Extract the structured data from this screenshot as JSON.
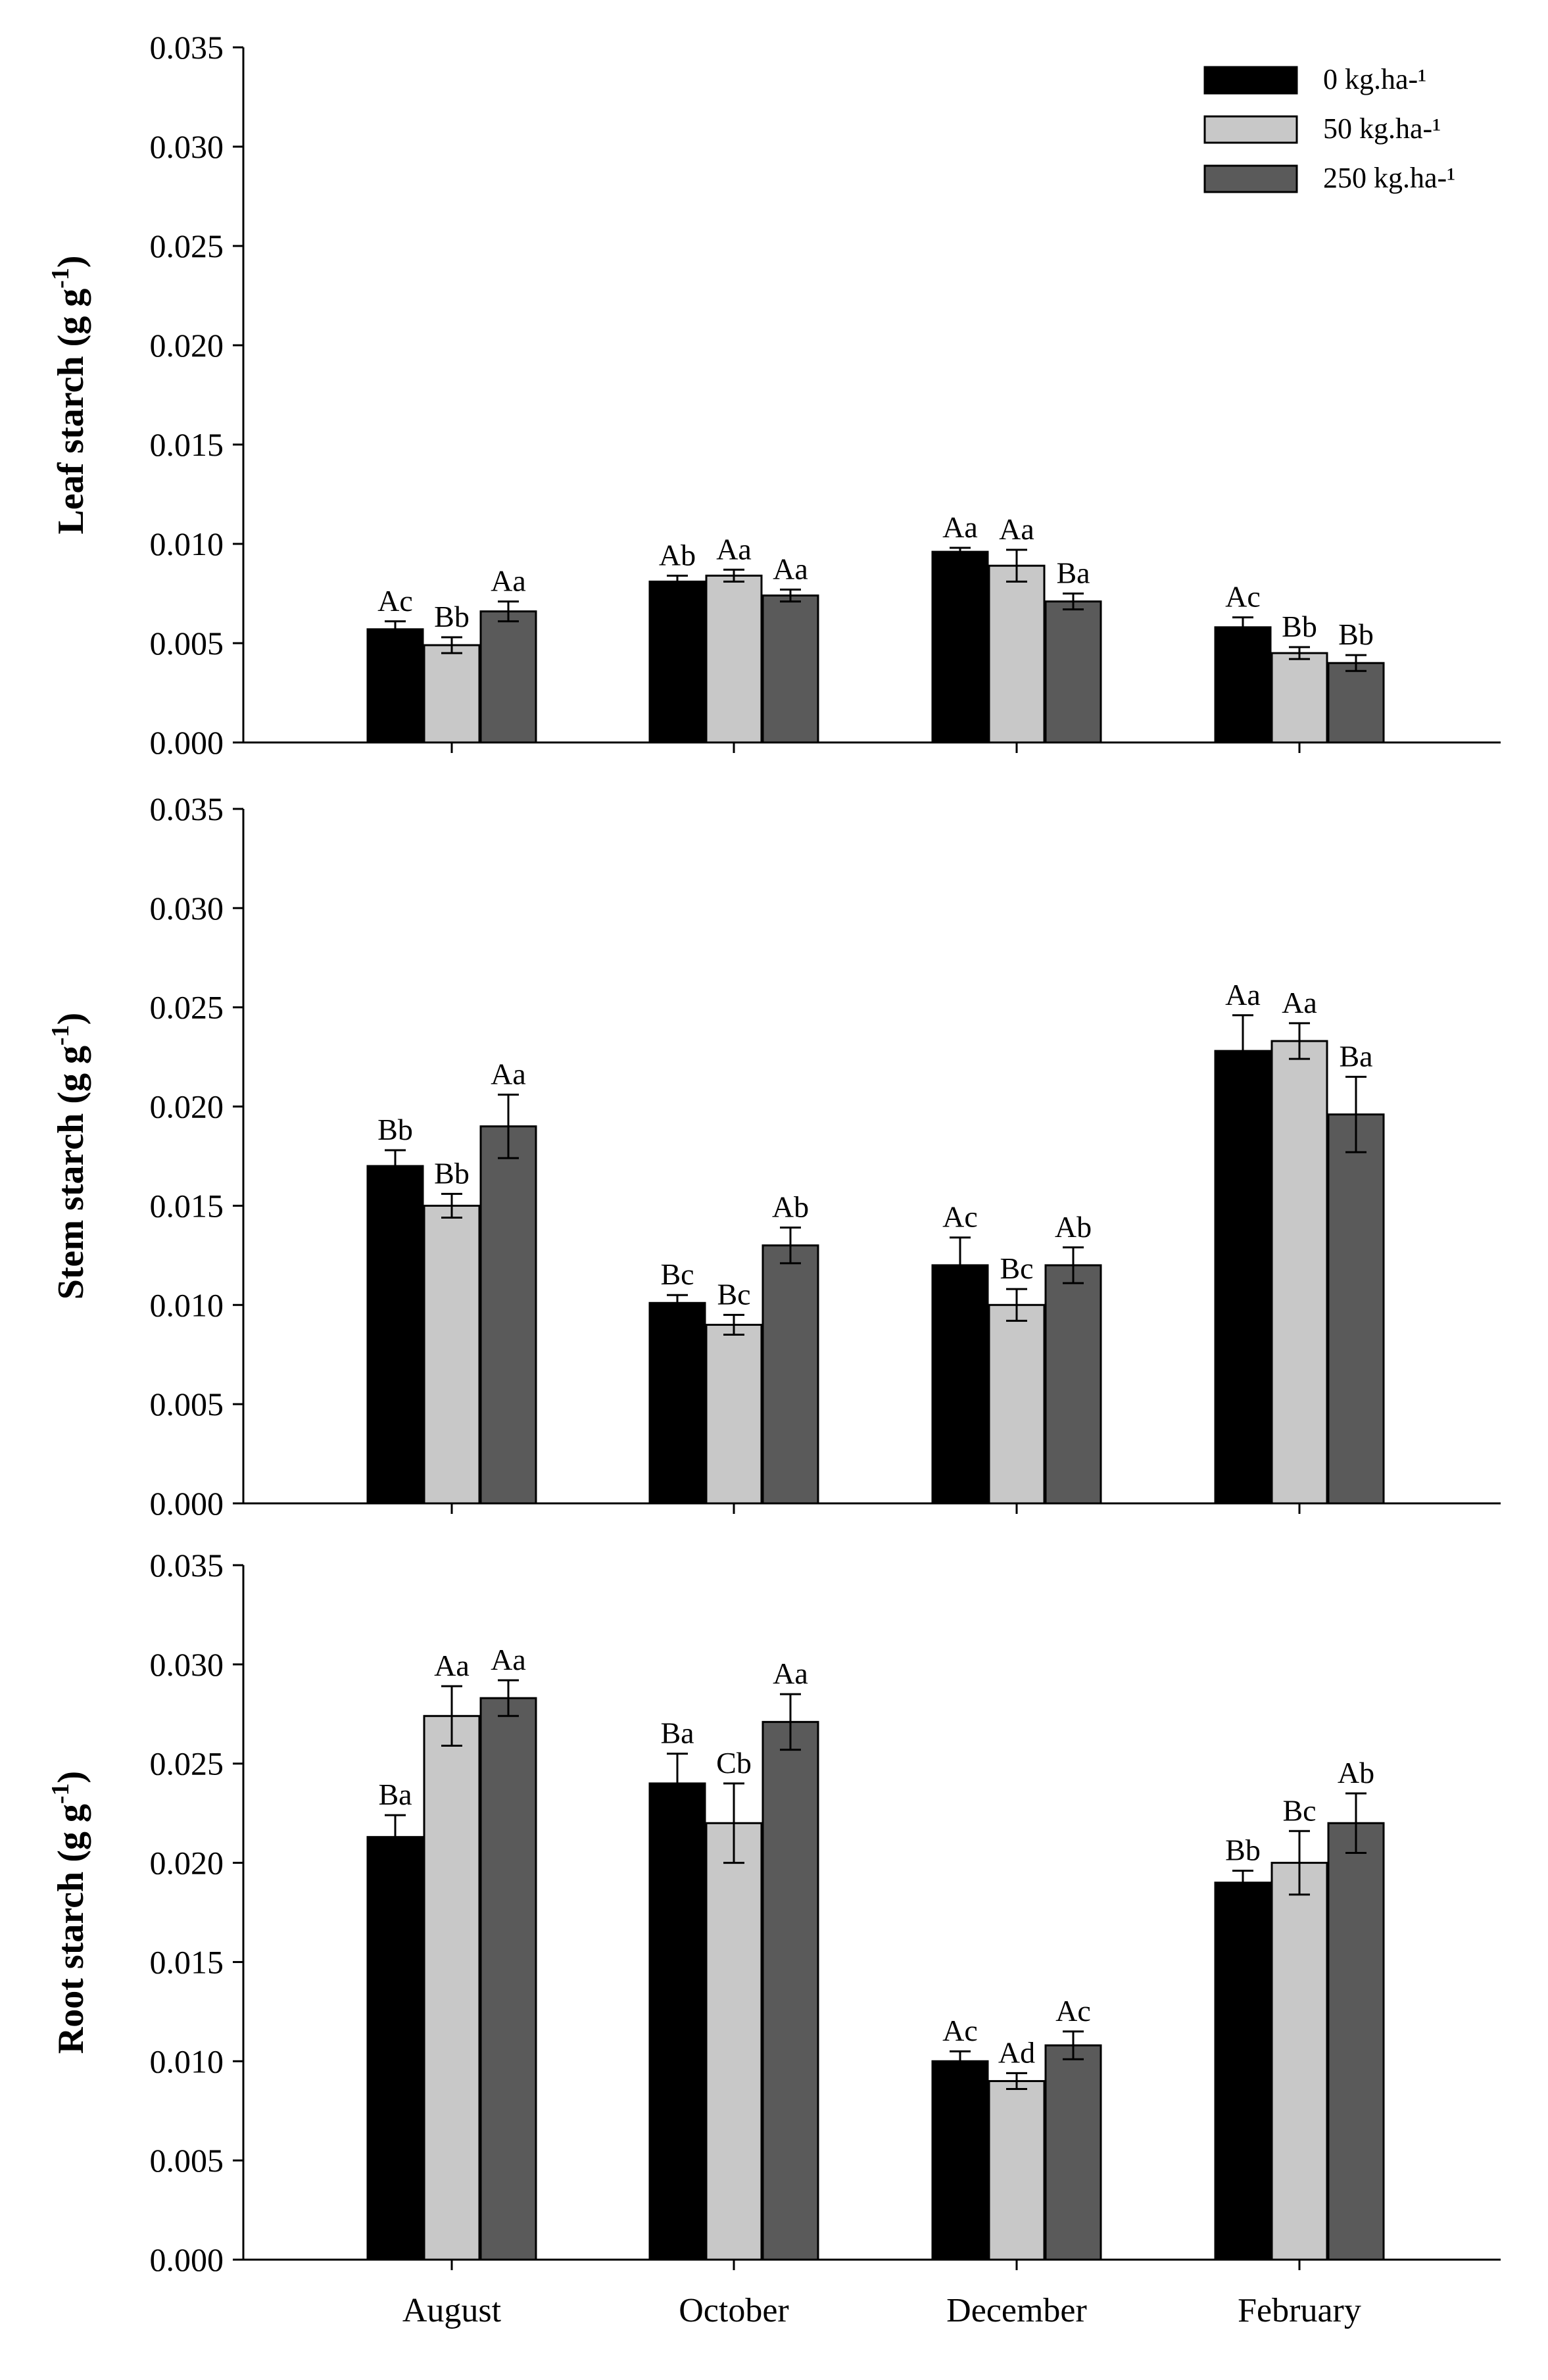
{
  "chart_data": {
    "type": "bar",
    "categories": [
      "August",
      "October",
      "December",
      "February"
    ],
    "ylim": [
      0,
      0.035
    ],
    "yticks": [
      "0.000",
      "0.005",
      "0.010",
      "0.015",
      "0.020",
      "0.025",
      "0.030",
      "0.035"
    ],
    "legend": {
      "position": "top-right",
      "entries": [
        {
          "name": "0 kg.ha-¹",
          "color": "#000000"
        },
        {
          "name": "50 kg.ha-¹",
          "color": "#c8c8c8"
        },
        {
          "name": "250 kg.ha-¹",
          "color": "#5a5a5a"
        }
      ]
    },
    "panels": [
      {
        "ylabel_main": "Leaf starch (g g",
        "ylabel_sup": "-1",
        "ylabel_end": ")",
        "series": [
          {
            "name": "0 kg.ha-¹",
            "values": [
              0.0057,
              0.0081,
              0.0096,
              0.0058
            ],
            "errors": [
              0.0004,
              0.0003,
              0.0002,
              0.0005
            ],
            "labels": [
              "Ac",
              "Ab",
              "Aa",
              "Ac"
            ]
          },
          {
            "name": "50 kg.ha-¹",
            "values": [
              0.0049,
              0.0084,
              0.0089,
              0.0045
            ],
            "errors": [
              0.0004,
              0.0003,
              0.0008,
              0.0003
            ],
            "labels": [
              "Bb",
              "Aa",
              "Aa",
              "Bb"
            ]
          },
          {
            "name": "250 kg.ha-¹",
            "values": [
              0.0066,
              0.0074,
              0.0071,
              0.004
            ],
            "errors": [
              0.0005,
              0.0003,
              0.0004,
              0.0004
            ],
            "labels": [
              "Aa",
              "Aa",
              "Ba",
              "Bb"
            ]
          }
        ]
      },
      {
        "ylabel_main": "Stem starch (g g",
        "ylabel_sup": "-1",
        "ylabel_end": ")",
        "series": [
          {
            "name": "0 kg.ha-¹",
            "values": [
              0.017,
              0.0101,
              0.012,
              0.0228
            ],
            "errors": [
              0.0008,
              0.0004,
              0.0014,
              0.0018
            ],
            "labels": [
              "Bb",
              "Bc",
              "Ac",
              "Aa"
            ]
          },
          {
            "name": "50 kg.ha-¹",
            "values": [
              0.015,
              0.009,
              0.01,
              0.0233
            ],
            "errors": [
              0.0006,
              0.0005,
              0.0008,
              0.0009
            ],
            "labels": [
              "Bb",
              "Bc",
              "Bc",
              "Aa"
            ]
          },
          {
            "name": "250 kg.ha-¹",
            "values": [
              0.019,
              0.013,
              0.012,
              0.0196
            ],
            "errors": [
              0.0016,
              0.0009,
              0.0009,
              0.0019
            ],
            "labels": [
              "Aa",
              "Ab",
              "Ab",
              "Ba"
            ]
          }
        ]
      },
      {
        "ylabel_main": "Root starch (g g",
        "ylabel_sup": "-1",
        "ylabel_end": ")",
        "series": [
          {
            "name": "0 kg.ha-¹",
            "values": [
              0.0213,
              0.024,
              0.01,
              0.019
            ],
            "errors": [
              0.0011,
              0.0015,
              0.0005,
              0.0006
            ],
            "labels": [
              "Ba",
              "Ba",
              "Ac",
              "Bb"
            ]
          },
          {
            "name": "50 kg.ha-¹",
            "values": [
              0.0274,
              0.022,
              0.009,
              0.02
            ],
            "errors": [
              0.0015,
              0.002,
              0.0004,
              0.0016
            ],
            "labels": [
              "Aa",
              "Cb",
              "Ad",
              "Bc"
            ]
          },
          {
            "name": "250 kg.ha-¹",
            "values": [
              0.0283,
              0.0271,
              0.0108,
              0.022
            ],
            "errors": [
              0.0009,
              0.0014,
              0.0007,
              0.0015
            ],
            "labels": [
              "Aa",
              "Aa",
              "Ac",
              "Ab"
            ]
          }
        ]
      }
    ]
  }
}
